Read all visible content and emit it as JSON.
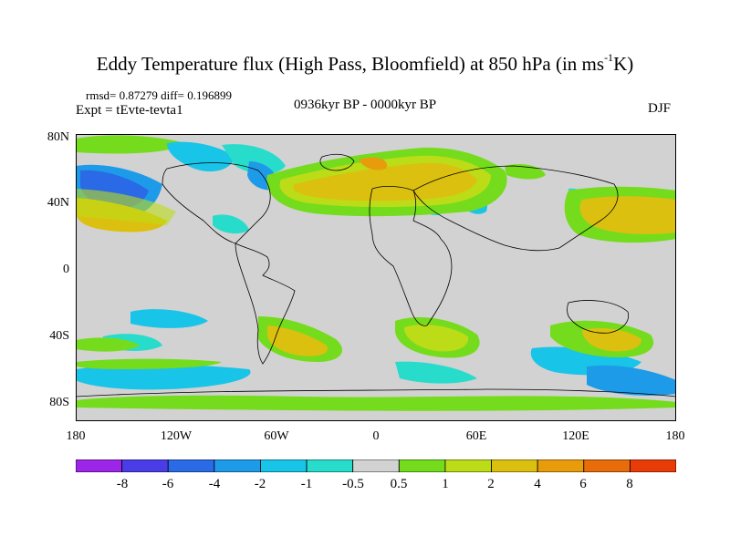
{
  "title_main": "Eddy Temperature flux (High Pass, Bloomfield) at 850 hPa (in ms",
  "title_sup": "-1",
  "title_end": "K)",
  "rmsd_line": "rmsd= 0.87279  diff= 0.196899",
  "expt_line": "Expt = tEvte-tevta1",
  "period": "0936kyr BP - 0000kyr BP",
  "season": "DJF",
  "lat_labels": [
    "80N",
    "40N",
    "0",
    "40S",
    "80S"
  ],
  "lon_labels": [
    "180",
    "120W",
    "60W",
    "0",
    "60E",
    "120E",
    "180"
  ],
  "colorbar": {
    "labels": [
      "-8",
      "-6",
      "-4",
      "-2",
      "-1",
      "-0.5",
      "0.5",
      "1",
      "2",
      "4",
      "6",
      "8"
    ],
    "colors": [
      "#9c26e8",
      "#4a3ce6",
      "#2a6ae6",
      "#1e9be8",
      "#18c4e8",
      "#28dccc",
      "#d2d2d2",
      "#74dc1c",
      "#bcdc18",
      "#dcc010",
      "#e89c0c",
      "#e86c0a",
      "#e83c08"
    ]
  },
  "colors": {
    "land_outline": "#000000",
    "neutral": "#d2d2d2"
  }
}
